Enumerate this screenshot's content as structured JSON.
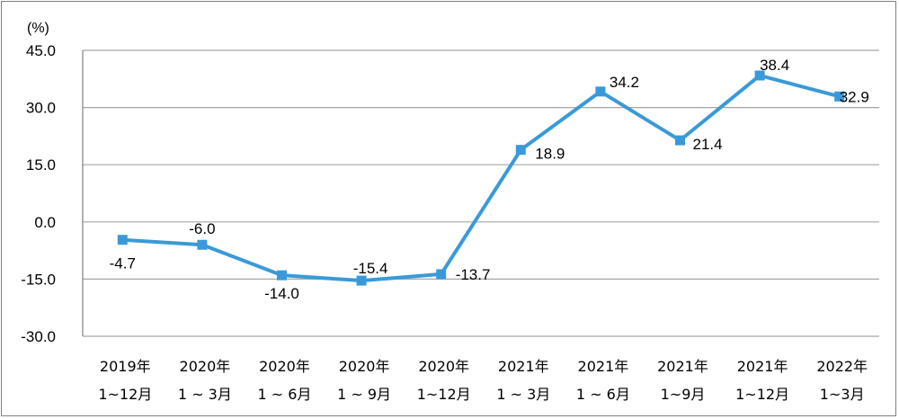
{
  "chart_data": {
    "type": "line",
    "unit_label": "(%)",
    "categories": [
      [
        "2019年",
        "1~12月"
      ],
      [
        "2020年",
        "1 ~ 3月"
      ],
      [
        "2020年",
        "1 ~ 6月"
      ],
      [
        "2020年",
        "1 ~ 9月"
      ],
      [
        "2020年",
        "1~12月"
      ],
      [
        "2021年",
        "1 ~ 3月"
      ],
      [
        "2021年",
        "1 ~ 6月"
      ],
      [
        "2021年",
        "1~9月"
      ],
      [
        "2021年",
        "1~12月"
      ],
      [
        "2022年",
        "1~3月"
      ]
    ],
    "series": [
      {
        "values": [
          -4.7,
          -6.0,
          -14.0,
          -15.4,
          -13.7,
          18.9,
          34.2,
          21.4,
          38.4,
          32.9
        ]
      }
    ],
    "data_labels": [
      "-4.7",
      "-6.0",
      "-14.0",
      "-15.4",
      "-13.7",
      "18.9",
      "34.2",
      "21.4",
      "38.4",
      "32.9"
    ],
    "yticks": [
      "45.0",
      "30.0",
      "15.0",
      "0.0",
      "-15.0",
      "-30.0"
    ],
    "ytick_values": [
      45,
      30,
      15,
      0,
      -15,
      -30
    ],
    "ylim": [
      -30,
      45
    ],
    "grid": true,
    "colors": {
      "line": "#3a9ad9",
      "grid": "#a6a6a6",
      "axis": "#808080"
    }
  }
}
